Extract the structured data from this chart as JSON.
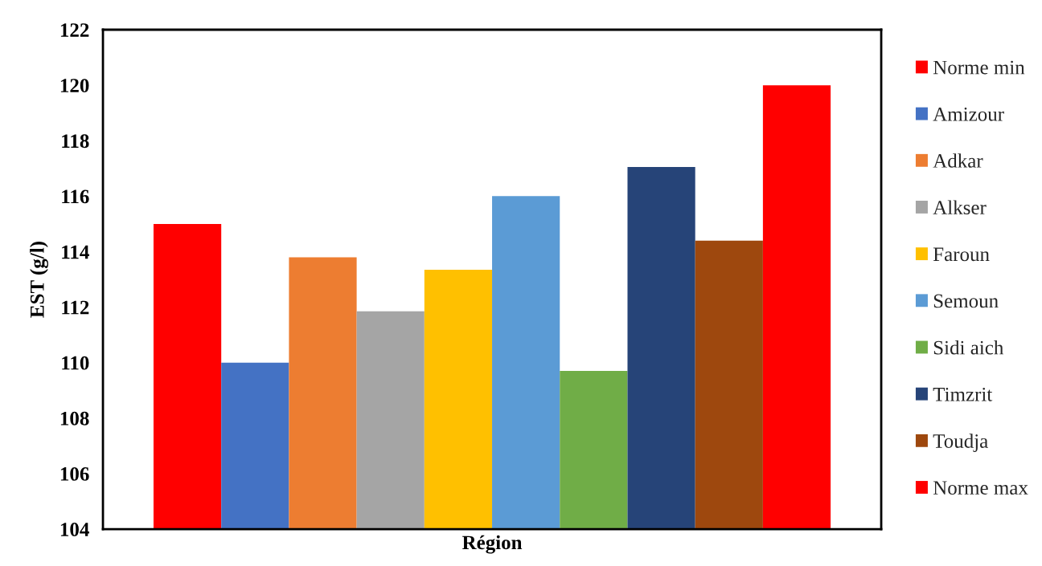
{
  "chart_data": {
    "type": "bar",
    "xlabel": "Région",
    "ylabel": "EST (g/l)",
    "categories": [
      null
    ],
    "series": [
      {
        "name": "Norme min",
        "color": "#ff0000",
        "values": [
          115
        ]
      },
      {
        "name": "Amizour",
        "color": "#4472c4",
        "values": [
          110
        ]
      },
      {
        "name": "Adkar",
        "color": "#ed7d31",
        "values": [
          113.8
        ]
      },
      {
        "name": "Alkser",
        "color": "#a5a5a5",
        "values": [
          111.85
        ]
      },
      {
        "name": "Faroun",
        "color": "#ffc000",
        "values": [
          113.35
        ]
      },
      {
        "name": "Semoun",
        "color": "#5b9bd5",
        "values": [
          116
        ]
      },
      {
        "name": "Sidi aich",
        "color": "#70ad47",
        "values": [
          109.7
        ]
      },
      {
        "name": "Timzrit",
        "color": "#264478",
        "values": [
          117.05
        ]
      },
      {
        "name": "Toudja",
        "color": "#9e480e",
        "values": [
          114.4
        ]
      },
      {
        "name": "Norme max",
        "color": "#ff0000",
        "values": [
          120
        ]
      }
    ],
    "ylim": [
      104,
      122
    ],
    "yticks": [
      104,
      106,
      108,
      110,
      112,
      114,
      116,
      118,
      120,
      122
    ],
    "legend": "right"
  }
}
